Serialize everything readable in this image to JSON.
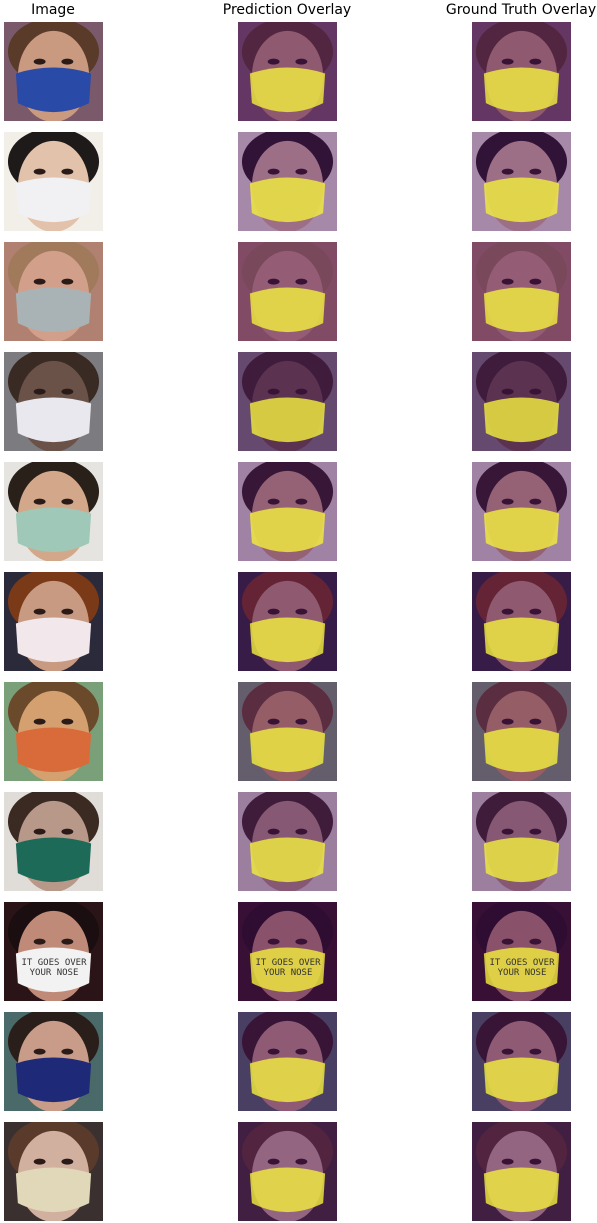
{
  "columns": [
    {
      "title": "Image"
    },
    {
      "title": "Prediction Overlay"
    },
    {
      "title": "Ground Truth Overlay"
    }
  ],
  "rows": [
    {
      "skin": "#c99a80",
      "hair": "#5a3b2a",
      "bg": "#7a5a6a",
      "mask": "#2a4aa8",
      "text": ""
    },
    {
      "skin": "#e2c2aa",
      "hair": "#1e1a1a",
      "bg": "#f2efe9",
      "mask": "#f1f1f4",
      "text": ""
    },
    {
      "skin": "#d2a08a",
      "hair": "#a07a5a",
      "bg": "#b08070",
      "mask": "#a9b3b6",
      "text": ""
    },
    {
      "skin": "#6a5248",
      "hair": "#3a2a24",
      "bg": "#7c7c80",
      "mask": "#e8e8ee",
      "text": ""
    },
    {
      "skin": "#d3a88a",
      "hair": "#2a201a",
      "bg": "#e6e4e0",
      "mask": "#9fc8b8",
      "text": ""
    },
    {
      "skin": "#c89a82",
      "hair": "#7a3a18",
      "bg": "#2a2a3a",
      "mask": "#f2e8ec",
      "text": ""
    },
    {
      "skin": "#d4a070",
      "hair": "#6a4a2a",
      "bg": "#7aa07a",
      "mask": "#d96a3a",
      "text": ""
    },
    {
      "skin": "#b89888",
      "hair": "#3a2a22",
      "bg": "#e0dcd8",
      "mask": "#1e6a58",
      "text": ""
    },
    {
      "skin": "#c08a78",
      "hair": "#1a0e10",
      "bg": "#2a1418",
      "mask": "#f2f2f2",
      "text": "IT GOES OVER YOUR NOSE"
    },
    {
      "skin": "#c89c88",
      "hair": "#2a1e1a",
      "bg": "#4a6a6a",
      "mask": "#1e2a78",
      "text": ""
    },
    {
      "skin": "#d2b0a0",
      "hair": "#5a3a2a",
      "bg": "#3a3030",
      "mask": "#e0d8b8",
      "text": ""
    }
  ],
  "colors": {
    "overlay_bg": "#4a0a5a",
    "overlay_mask": "#f0ec40"
  }
}
